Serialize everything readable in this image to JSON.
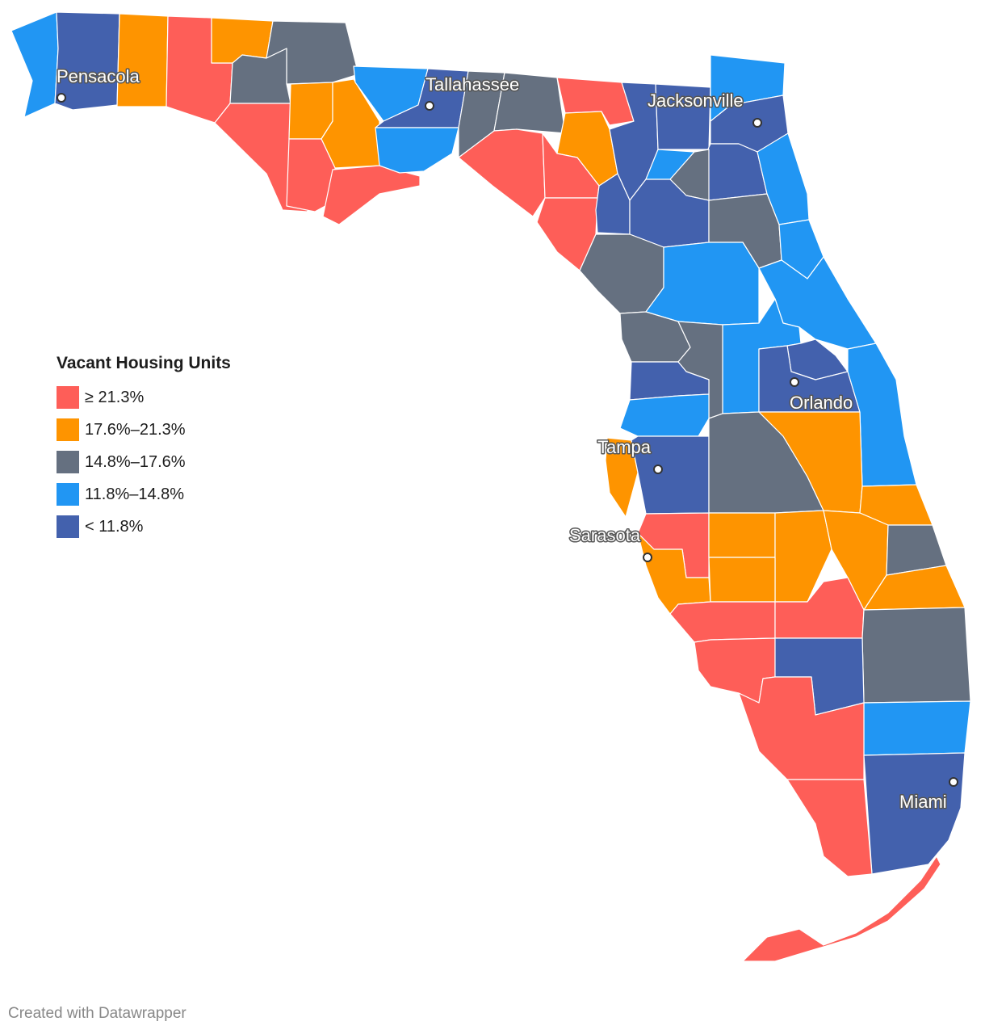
{
  "legend": {
    "title": "Vacant Housing Units",
    "items": [
      {
        "label": "≥ 21.3%",
        "color": "#fe5e58"
      },
      {
        "label": "17.6%–21.3%",
        "color": "#fe9400"
      },
      {
        "label": "14.8%–17.6%",
        "color": "#657080"
      },
      {
        "label": "11.8%–14.8%",
        "color": "#2196f3"
      },
      {
        "label": "< 11.8%",
        "color": "#4361ad"
      }
    ]
  },
  "cities": [
    {
      "name": "Pensacola"
    },
    {
      "name": "Tallahassee"
    },
    {
      "name": "Jacksonville"
    },
    {
      "name": "Orlando"
    },
    {
      "name": "Tampa"
    },
    {
      "name": "Sarasota"
    },
    {
      "name": "Miami"
    }
  ],
  "credit": "Created with Datawrapper"
}
